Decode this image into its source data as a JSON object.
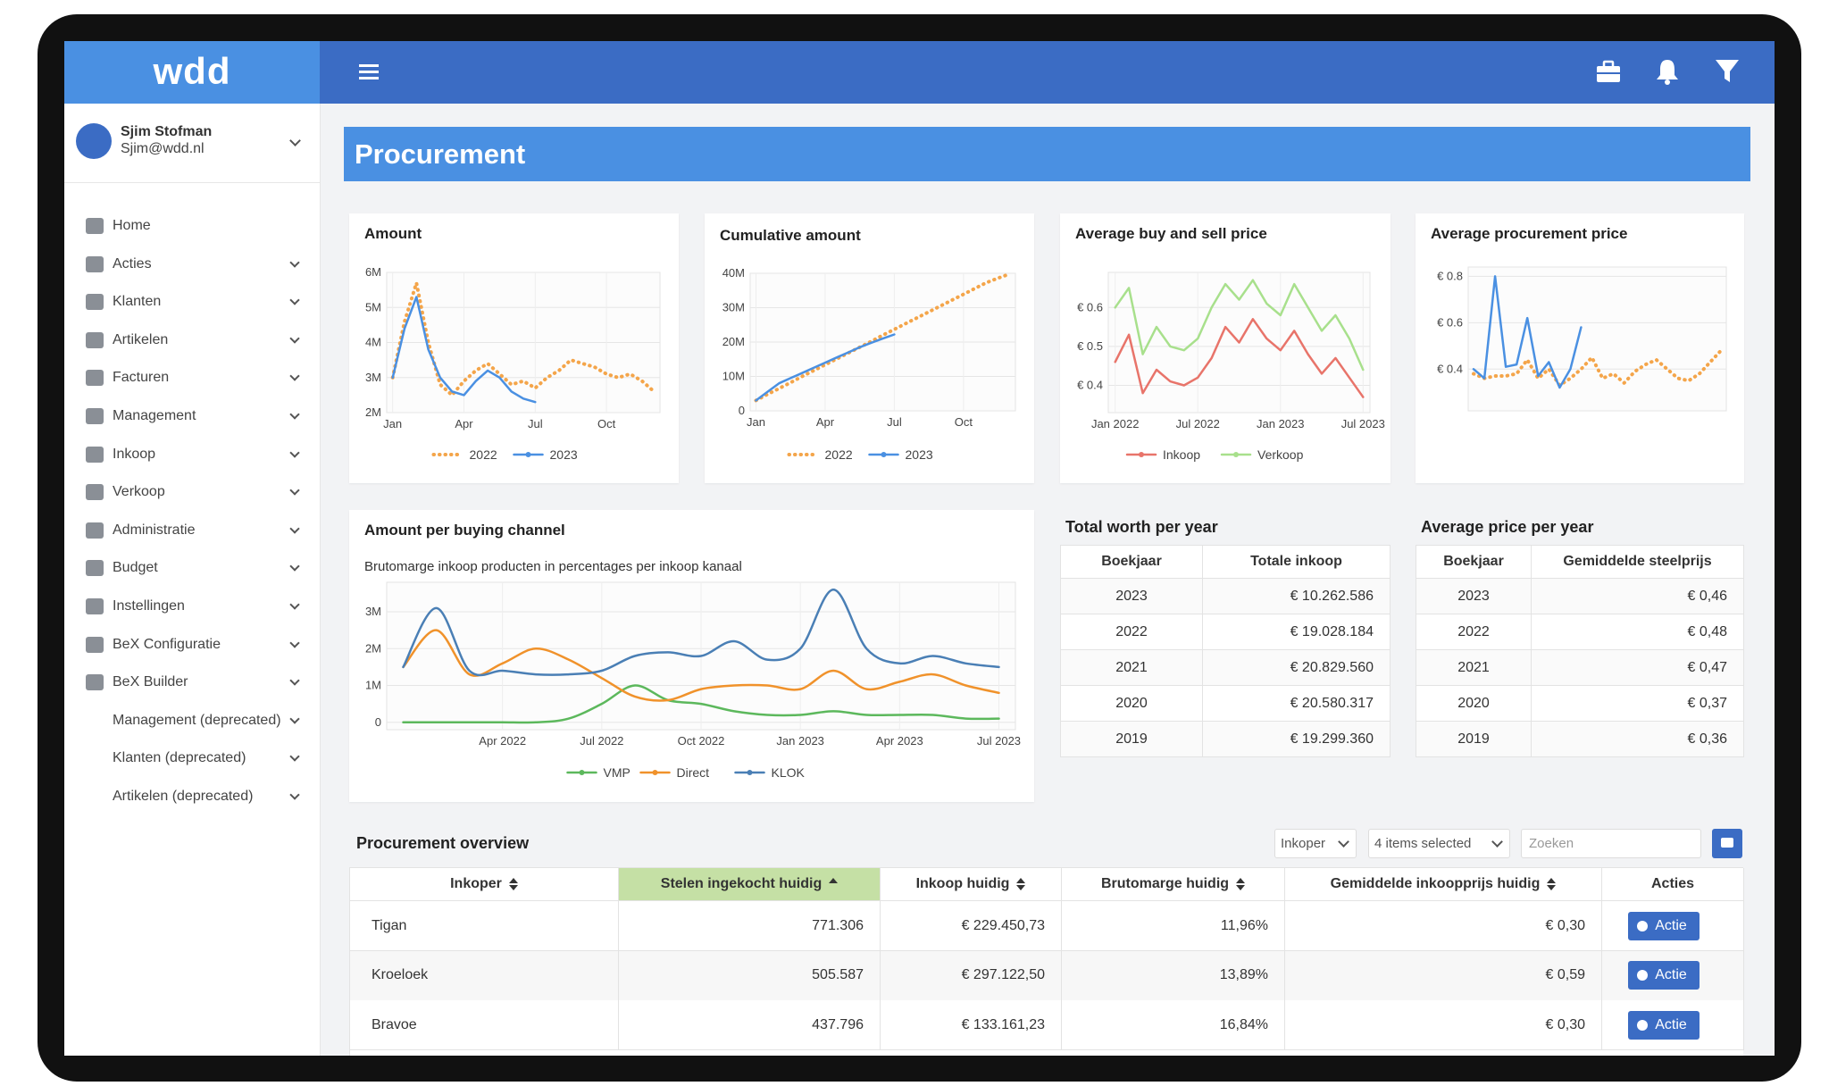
{
  "sidebar": {
    "logo": "wdd",
    "user": {
      "name": "Sjim Stofman",
      "email": "Sjim@wdd.nl"
    },
    "menu": [
      "Home",
      "Acties",
      "Klanten",
      "Artikelen",
      "Facturen",
      "Management",
      "Inkoop",
      "Verkoop",
      "Administratie",
      "Budget",
      "Instellingen",
      "BeX Configuratie",
      "BeX Builder",
      "Management (deprecated)",
      "Klanten (deprecated)",
      "Artikelen (deprecated)"
    ]
  },
  "header": {
    "title": "Procurement"
  },
  "chart_data": [
    {
      "type": "line",
      "title": "Amount",
      "categories": [
        "Jan",
        null,
        null,
        null,
        null,
        null,
        "Apr",
        null,
        null,
        null,
        null,
        null,
        "Jul",
        null,
        null,
        null,
        null,
        null,
        "Oct",
        null,
        null,
        null,
        null
      ],
      "series": [
        {
          "name": "2022",
          "color": "#f4a54a",
          "dashed": true,
          "values": [
            3000000,
            4600000,
            5700000,
            4000000,
            2800000,
            2500000,
            2900000,
            3200000,
            3400000,
            3100000,
            2800000,
            2900000,
            2700000,
            3000000,
            3200000,
            3500000,
            3400000,
            3300000,
            3100000,
            3000000,
            3100000,
            2900000,
            2600000
          ]
        },
        {
          "name": "2023",
          "color": "#4a90e2",
          "values": [
            3000000,
            4400000,
            5300000,
            3800000,
            3000000,
            2600000,
            2500000,
            2900000,
            3200000,
            3000000,
            2600000,
            2400000,
            2300000,
            null,
            null,
            null,
            null,
            null,
            null,
            null,
            null,
            null,
            null
          ]
        }
      ],
      "ylim": [
        2000000,
        6000000
      ],
      "yticks": [
        {
          "value": 2000000,
          "label": "2M"
        },
        {
          "value": 3000000,
          "label": "3M"
        },
        {
          "value": 4000000,
          "label": "4M"
        },
        {
          "value": 5000000,
          "label": "5M"
        },
        {
          "value": 6000000,
          "label": "6M"
        }
      ],
      "grid": true
    },
    {
      "type": "line",
      "title": "Cumulative amount",
      "categories": [
        "Jan",
        null,
        null,
        null,
        null,
        null,
        "Apr",
        null,
        null,
        null,
        null,
        null,
        "Jul",
        null,
        null,
        null,
        null,
        null,
        "Oct",
        null,
        null,
        null,
        null
      ],
      "series": [
        {
          "name": "2022",
          "color": "#f4a54a",
          "dashed": true,
          "values": [
            3000000,
            4800000,
            6500000,
            8200000,
            10000000,
            11700000,
            13400000,
            15100000,
            16800000,
            18500000,
            20200000,
            22000000,
            23700000,
            25400000,
            27100000,
            28800000,
            30500000,
            32200000,
            33900000,
            35600000,
            37300000,
            38600000,
            39800000
          ]
        },
        {
          "name": "2023",
          "color": "#4a90e2",
          "values": [
            3000000,
            5500000,
            8000000,
            9500000,
            11000000,
            12500000,
            14000000,
            15500000,
            17000000,
            18500000,
            19800000,
            21000000,
            22200000,
            null,
            null,
            null,
            null,
            null,
            null,
            null,
            null,
            null,
            null
          ]
        }
      ],
      "ylim": [
        0,
        40000000
      ],
      "yticks": [
        0,
        {
          "value": 10000000,
          "label": "10M"
        },
        {
          "value": 20000000,
          "label": "20M"
        },
        {
          "value": 30000000,
          "label": "30M"
        },
        {
          "value": 40000000,
          "label": "40M"
        }
      ],
      "grid": true
    },
    {
      "type": "line",
      "title": "Average buy and sell price",
      "categories": [
        "Jan 2022",
        null,
        null,
        null,
        null,
        null,
        "Jul 2022",
        null,
        null,
        null,
        null,
        null,
        "Jan 2023",
        null,
        null,
        null,
        null,
        null,
        "Jul 2023"
      ],
      "series": [
        {
          "name": "Inkoop",
          "color": "#e8746a",
          "values": [
            0.46,
            0.53,
            0.38,
            0.44,
            0.41,
            0.4,
            0.42,
            0.47,
            0.55,
            0.51,
            0.57,
            0.52,
            0.49,
            0.54,
            0.48,
            0.43,
            0.47,
            0.42,
            0.37
          ]
        },
        {
          "name": "Verkoop",
          "color": "#a8e08c",
          "values": [
            0.6,
            0.65,
            0.48,
            0.55,
            0.5,
            0.49,
            0.52,
            0.6,
            0.66,
            0.62,
            0.67,
            0.61,
            0.58,
            0.66,
            0.6,
            0.54,
            0.58,
            0.52,
            0.44
          ]
        }
      ],
      "ylim": [
        0.33,
        0.69
      ],
      "yticks": [
        {
          "value": 0.4,
          "label": "€ 0.4"
        },
        {
          "value": 0.5,
          "label": "€ 0.5"
        },
        {
          "value": 0.6,
          "label": "€ 0.6"
        }
      ],
      "grid": true
    },
    {
      "type": "line",
      "title": "Average procurement price",
      "series": [
        {
          "color": "#f4a54a",
          "dashed": true,
          "values": [
            0.38,
            0.36,
            0.37,
            0.37,
            0.38,
            0.44,
            0.36,
            0.4,
            0.33,
            0.36,
            0.4,
            0.45,
            0.36,
            0.38,
            0.34,
            0.39,
            0.42,
            0.44,
            0.4,
            0.36,
            0.35,
            0.38,
            0.43,
            0.48
          ]
        },
        {
          "color": "#4a90e2",
          "values": [
            0.4,
            0.36,
            0.8,
            0.41,
            0.42,
            0.62,
            0.37,
            0.43,
            0.32,
            0.4,
            0.58,
            null,
            null,
            null,
            null,
            null,
            null,
            null,
            null,
            null,
            null,
            null,
            null,
            null
          ]
        }
      ],
      "ylim": [
        0.22,
        0.84
      ],
      "yticks": [
        {
          "value": 0.4,
          "label": "€ 0.4"
        },
        {
          "value": 0.6,
          "label": "€ 0.6"
        },
        {
          "value": 0.8,
          "label": "€ 0.8"
        }
      ],
      "grid": true
    },
    {
      "type": "line",
      "title": "Amount per buying channel",
      "subtitle": "Brutomarge inkoop producten in percentages per inkoop kanaal",
      "smooth": true,
      "categories": [
        null,
        null,
        null,
        "Apr 2022",
        null,
        null,
        "Jul 2022",
        null,
        null,
        "Oct 2022",
        null,
        null,
        "Jan 2023",
        null,
        null,
        "Apr 2023",
        null,
        null,
        "Jul 2023"
      ],
      "series": [
        {
          "name": "VMP",
          "color": "#5cb85c",
          "values": [
            0,
            0,
            0,
            0,
            0,
            100000,
            500000,
            1000000,
            600000,
            500000,
            300000,
            200000,
            200000,
            300000,
            200000,
            200000,
            200000,
            100000,
            100000
          ]
        },
        {
          "name": "Direct",
          "color": "#f0922b",
          "values": [
            1500000,
            2500000,
            1300000,
            1600000,
            2000000,
            1700000,
            1200000,
            700000,
            600000,
            900000,
            1000000,
            1000000,
            900000,
            1400000,
            900000,
            1100000,
            1300000,
            1000000,
            800000
          ]
        },
        {
          "name": "KLOK",
          "color": "#4a7fb5",
          "values": [
            1500000,
            3100000,
            1400000,
            1400000,
            1300000,
            1300000,
            1400000,
            1800000,
            1900000,
            1800000,
            2200000,
            1700000,
            2000000,
            3600000,
            2000000,
            1600000,
            1800000,
            1600000,
            1500000
          ]
        }
      ],
      "ylim": [
        -200000,
        3800000
      ],
      "yticks": [
        0,
        {
          "value": 1000000,
          "label": "1M"
        },
        {
          "value": 2000000,
          "label": "2M"
        },
        {
          "value": 3000000,
          "label": "3M"
        }
      ],
      "grid": true
    }
  ],
  "tables": [
    {
      "title": "Total worth per year",
      "columns": [
        "Boekjaar",
        "Totale inkoop"
      ],
      "rows": [
        [
          "2023",
          "€ 10.262.586"
        ],
        [
          "2022",
          "€ 19.028.184"
        ],
        [
          "2021",
          "€ 20.829.560"
        ],
        [
          "2020",
          "€ 20.580.317"
        ],
        [
          "2019",
          "€ 19.299.360"
        ]
      ]
    },
    {
      "title": "Average price per year",
      "columns": [
        "Boekjaar",
        "Gemiddelde steelprijs"
      ],
      "rows": [
        [
          "2023",
          "€ 0,46"
        ],
        [
          "2022",
          "€ 0,48"
        ],
        [
          "2021",
          "€ 0,47"
        ],
        [
          "2020",
          "€ 0,37"
        ],
        [
          "2019",
          "€ 0,36"
        ]
      ]
    }
  ],
  "overview": {
    "title": "Procurement overview",
    "filters": [
      "Inkoper",
      "4 items selected"
    ],
    "search_placeholder": "Zoeken",
    "columns": [
      "Inkoper",
      "Stelen ingekocht huidig",
      "Inkoop huidig",
      "Brutomarge huidig",
      "Gemiddelde inkoopprijs huidig",
      "Acties"
    ],
    "rows": [
      [
        "Tigan",
        "771.306",
        "€ 229.450,73",
        "11,96%",
        "€ 0,30",
        "Actie"
      ],
      [
        "Kroeloek",
        "505.587",
        "€ 297.122,50",
        "13,89%",
        "€ 0,59",
        "Actie"
      ],
      [
        "Bravoe",
        "437.796",
        "€ 133.161,23",
        "16,84%",
        "€ 0,30",
        "Actie"
      ]
    ]
  }
}
